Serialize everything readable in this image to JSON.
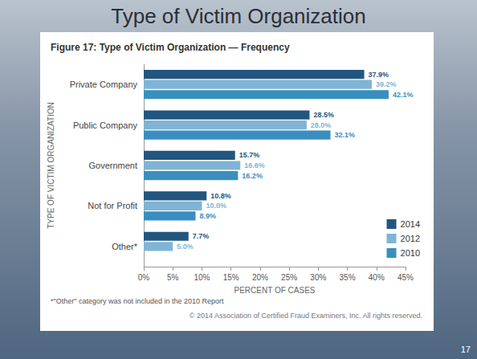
{
  "slide": {
    "title": "Type of Victim Organization",
    "page_number": 17
  },
  "chart_data": {
    "type": "bar",
    "orientation": "horizontal",
    "title": "Figure 17: Type of Victim Organization — Frequency",
    "xlabel": "PERCENT OF CASES",
    "ylabel": "TYPE OF VICTIM ORGANIZATION",
    "categories": [
      "Private Company",
      "Public Company",
      "Government",
      "Not for Profit",
      "Other*"
    ],
    "series": [
      {
        "name": "2014",
        "color": "#22567f",
        "values": [
          37.9,
          28.5,
          15.7,
          10.8,
          7.7
        ],
        "value_labels": [
          "37.9%",
          "28.5%",
          "15.7%",
          "10.8%",
          "7.7%"
        ]
      },
      {
        "name": "2012",
        "color": "#7fb4d4",
        "values": [
          39.2,
          28.0,
          16.6,
          10.0,
          5.0
        ],
        "value_labels": [
          "39.2%",
          "28.0%",
          "16.6%",
          "10.0%",
          "5.0%"
        ]
      },
      {
        "name": "2010",
        "color": "#3a8ebf",
        "values": [
          42.1,
          32.1,
          16.2,
          8.9,
          null
        ],
        "value_labels": [
          "42.1%",
          "32.1%",
          "16.2%",
          "8.9%",
          null
        ]
      }
    ],
    "xlim": [
      0,
      45
    ],
    "xticks": [
      {
        "value": 0,
        "label": "0%"
      },
      {
        "value": 5,
        "label": "5%"
      },
      {
        "value": 10,
        "label": "10%"
      },
      {
        "value": 15,
        "label": "15%"
      },
      {
        "value": 20,
        "label": "20%"
      },
      {
        "value": 25,
        "label": "25%"
      },
      {
        "value": 30,
        "label": "30%"
      },
      {
        "value": 35,
        "label": "35%"
      },
      {
        "value": 40,
        "label": "40%"
      },
      {
        "value": 45,
        "label": "45%"
      }
    ],
    "grid": false,
    "legend": "lower right",
    "data_labels": true,
    "annotations": [
      "*\"Other\" category was not included in the 2010 Report",
      "© 2014 Association of Certified Fraud Examiners, Inc. All rights reserved."
    ]
  }
}
